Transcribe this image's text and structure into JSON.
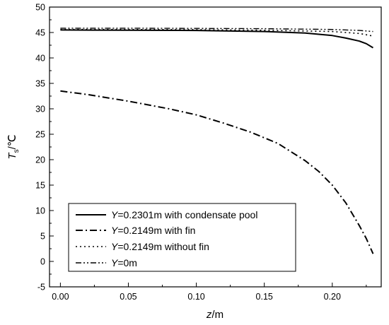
{
  "chart_data": {
    "type": "line",
    "title": "",
    "xlabel_var": "z",
    "xlabel_unit": "/m",
    "ylabel_var": "T",
    "ylabel_sub": "s",
    "ylabel_unit": "/℃",
    "xlim": [
      -0.008,
      0.236
    ],
    "ylim": [
      -5,
      50
    ],
    "xticks": [
      0.0,
      0.05,
      0.1,
      0.15,
      0.2
    ],
    "xtick_labels": [
      "0.00",
      "0.05",
      "0.10",
      "0.15",
      "0.20"
    ],
    "yticks": [
      -5,
      0,
      5,
      10,
      15,
      20,
      25,
      30,
      35,
      40,
      45,
      50
    ],
    "ytick_labels": [
      "-5",
      "0",
      "5",
      "10",
      "15",
      "20",
      "25",
      "30",
      "35",
      "40",
      "45",
      "50"
    ],
    "grid": false,
    "legend_position": "bottom-left",
    "series": [
      {
        "var": "Y",
        "name": "=0.2301m with condensate pool",
        "style": "solid",
        "x": [
          0.0,
          0.05,
          0.1,
          0.15,
          0.18,
          0.2,
          0.21,
          0.22,
          0.225,
          0.23
        ],
        "y": [
          45.5,
          45.45,
          45.4,
          45.2,
          44.9,
          44.4,
          43.9,
          43.3,
          42.8,
          42.0
        ]
      },
      {
        "var": "Y",
        "name": "=0.2149m with fin",
        "style": "dash-dot",
        "x": [
          0.0,
          0.02,
          0.05,
          0.08,
          0.1,
          0.12,
          0.14,
          0.16,
          0.18,
          0.19,
          0.2,
          0.21,
          0.22,
          0.225,
          0.23
        ],
        "y": [
          33.5,
          32.8,
          31.5,
          30.0,
          28.8,
          27.2,
          25.4,
          23.2,
          19.8,
          17.7,
          15.0,
          11.5,
          7.0,
          4.5,
          1.5
        ]
      },
      {
        "var": "Y",
        "name": "=0.2149m without fin",
        "style": "dotted",
        "x": [
          0.0,
          0.05,
          0.1,
          0.15,
          0.2,
          0.22,
          0.23
        ],
        "y": [
          45.6,
          45.6,
          45.55,
          45.45,
          45.2,
          44.8,
          44.3
        ]
      },
      {
        "var": "Y",
        "name": "=0m",
        "style": "dash-dot-dot",
        "x": [
          0.0,
          0.05,
          0.1,
          0.15,
          0.2,
          0.22,
          0.23
        ],
        "y": [
          45.85,
          45.85,
          45.8,
          45.75,
          45.6,
          45.4,
          45.2
        ]
      }
    ]
  }
}
